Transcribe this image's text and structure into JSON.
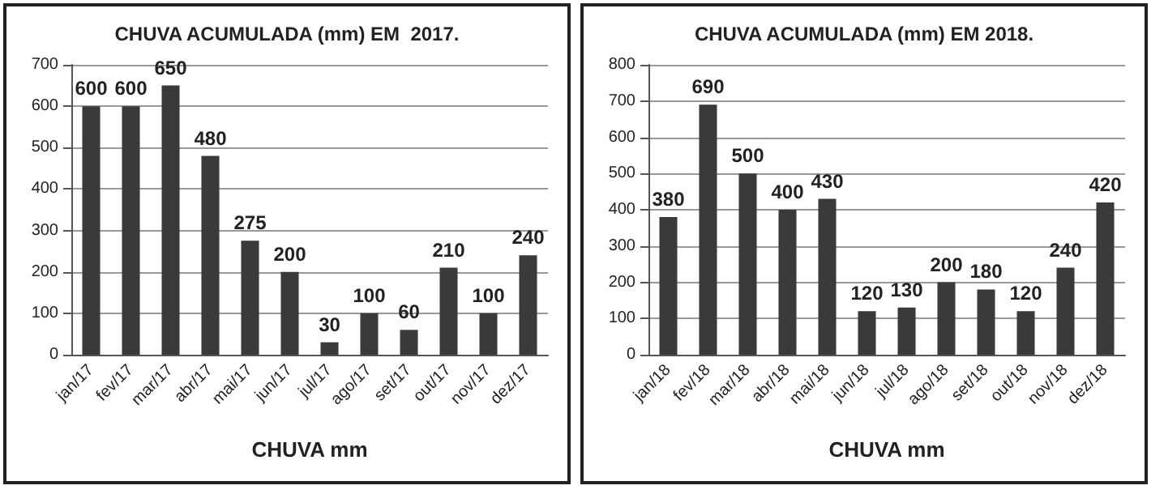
{
  "chart_data": [
    {
      "type": "bar",
      "title": "CHUVA ACUMULADA (mm) EM  2017.",
      "xlabel": "CHUVA mm",
      "categories": [
        "jan/17",
        "fev/17",
        "mar/17",
        "abr/17",
        "mai/17",
        "jun/17",
        "jul/17",
        "ago/17",
        "set/17",
        "out/17",
        "nov/17",
        "dez/17"
      ],
      "values": [
        600,
        600,
        650,
        480,
        275,
        200,
        30,
        100,
        60,
        210,
        100,
        240
      ],
      "color": "#3a3a3a",
      "ylim": [
        0,
        700
      ],
      "yticks": [
        0,
        100,
        200,
        300,
        400,
        500,
        600,
        700
      ],
      "grid": "y",
      "data_labels": true
    },
    {
      "type": "bar",
      "title": "CHUVA ACUMULADA (mm) EM 2018.",
      "xlabel": "CHUVA mm",
      "categories": [
        "jan/18",
        "fev/18",
        "mar/18",
        "abr/18",
        "mai/18",
        "jun/18",
        "jul/18",
        "ago/18",
        "set/18",
        "out/18",
        "nov/18",
        "dez/18"
      ],
      "values": [
        380,
        690,
        500,
        400,
        430,
        120,
        130,
        200,
        180,
        120,
        240,
        420
      ],
      "color": "#3a3a3a",
      "ylim": [
        0,
        800
      ],
      "yticks": [
        0,
        100,
        200,
        300,
        400,
        500,
        600,
        700,
        800
      ],
      "grid": "y",
      "data_labels": true
    }
  ]
}
